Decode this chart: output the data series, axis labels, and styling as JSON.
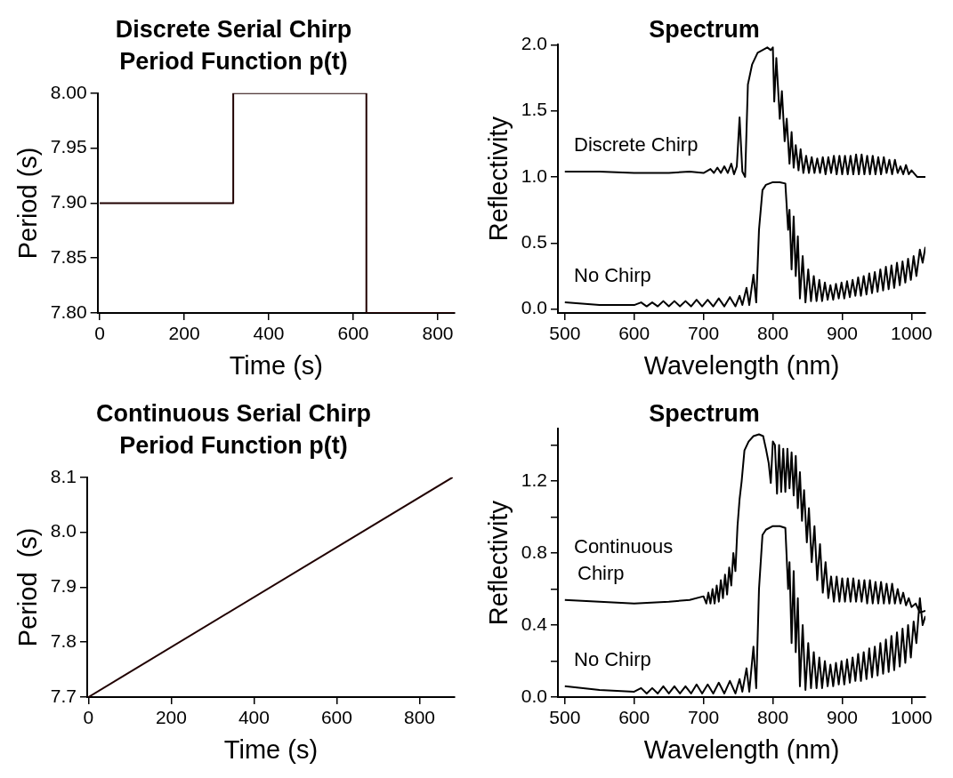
{
  "chart_data": [
    {
      "type": "step",
      "title": "Discrete Serial Chirp",
      "subtitle": "Period Function p(t)",
      "xlabel": "Time (s)",
      "ylabel": "Period (s)",
      "x": [
        0,
        316,
        631,
        840
      ],
      "values": [
        7.9,
        8.0,
        7.8,
        7.8
      ],
      "color": "#200000",
      "xlim": [
        -5,
        840
      ],
      "xticks": [
        0,
        200,
        400,
        600,
        800
      ],
      "ylim": [
        7.8,
        8.0
      ],
      "yticks": [
        {
          "value": 7.8,
          "label": "7.80"
        },
        {
          "value": 7.85,
          "label": "7.85"
        },
        {
          "value": 7.9,
          "label": "7.90"
        },
        {
          "value": 7.95,
          "label": "7.95"
        },
        {
          "value": 8.0,
          "label": "8.00"
        }
      ],
      "grid": false,
      "legend": false
    },
    {
      "type": "line",
      "title": "Spectrum",
      "xlabel": "Wavelength (nm)",
      "ylabel": "Reflectivity",
      "xlim": [
        490,
        1020
      ],
      "xticks": [
        500,
        600,
        700,
        800,
        900,
        1000
      ],
      "ylim": [
        -0.03,
        2.0
      ],
      "yticks": [
        {
          "value": 0,
          "label": "0.0"
        },
        {
          "value": 0.5,
          "label": "0.5"
        },
        {
          "value": 1,
          "label": "1.0"
        },
        {
          "value": 1.5,
          "label": "1.5"
        },
        {
          "value": 2,
          "label": "2.0"
        }
      ],
      "grid": false,
      "legend": false,
      "series": [
        {
          "name": "Discrete Chirp",
          "color": "#000000",
          "x": [
            500,
            550,
            600,
            650,
            680,
            700,
            710,
            715,
            720,
            725,
            730,
            735,
            740,
            744,
            748,
            752,
            756,
            760,
            764,
            770,
            778,
            785,
            792,
            797,
            800,
            802,
            805,
            810,
            813,
            817,
            820,
            824,
            827,
            830,
            833,
            837,
            840,
            844,
            848,
            852,
            856,
            860,
            864,
            868,
            872,
            876,
            880,
            884,
            888,
            892,
            896,
            900,
            904,
            908,
            912,
            916,
            920,
            924,
            928,
            932,
            936,
            940,
            944,
            948,
            952,
            956,
            960,
            964,
            968,
            972,
            976,
            980,
            984,
            988,
            992,
            996,
            1000,
            1008,
            1020
          ],
          "values": [
            1.04,
            1.04,
            1.03,
            1.03,
            1.04,
            1.03,
            1.06,
            1.03,
            1.07,
            1.03,
            1.08,
            1.03,
            1.1,
            1.02,
            1.08,
            1.45,
            1.04,
            1.0,
            1.7,
            1.85,
            1.94,
            1.96,
            1.98,
            1.96,
            1.98,
            1.57,
            1.9,
            1.44,
            1.65,
            1.27,
            1.44,
            1.1,
            1.34,
            1.07,
            1.24,
            1.05,
            1.21,
            1.03,
            1.16,
            1.03,
            1.15,
            1.03,
            1.14,
            1.03,
            1.15,
            1.02,
            1.15,
            1.03,
            1.16,
            1.02,
            1.16,
            1.02,
            1.16,
            1.02,
            1.16,
            1.02,
            1.17,
            1.02,
            1.17,
            1.02,
            1.16,
            1.02,
            1.16,
            1.02,
            1.15,
            1.02,
            1.15,
            1.03,
            1.13,
            1.02,
            1.13,
            1.03,
            1.08,
            1.02,
            1.09,
            1.02,
            1.05,
            1.0,
            1.0
          ]
        },
        {
          "name": "No Chirp",
          "color": "#000000",
          "x": [
            500,
            550,
            600,
            610,
            618,
            626,
            634,
            642,
            650,
            658,
            666,
            674,
            682,
            690,
            698,
            706,
            714,
            722,
            730,
            738,
            746,
            752,
            756,
            762,
            766,
            772,
            776,
            780,
            785,
            790,
            800,
            810,
            818,
            822,
            824,
            827,
            830,
            833,
            836,
            839,
            843,
            847,
            851,
            855,
            859,
            863,
            867,
            871,
            875,
            879,
            883,
            887,
            891,
            895,
            899,
            903,
            907,
            911,
            915,
            919,
            923,
            927,
            931,
            935,
            939,
            943,
            947,
            951,
            955,
            959,
            963,
            967,
            971,
            975,
            979,
            983,
            987,
            991,
            995,
            999,
            1003,
            1007,
            1012,
            1016,
            1020
          ],
          "values": [
            0.05,
            0.03,
            0.03,
            0.05,
            0.02,
            0.05,
            0.02,
            0.06,
            0.02,
            0.06,
            0.02,
            0.06,
            0.02,
            0.07,
            0.02,
            0.07,
            0.02,
            0.08,
            0.02,
            0.09,
            0.02,
            0.1,
            0.03,
            0.16,
            0.03,
            0.26,
            0.05,
            0.6,
            0.9,
            0.94,
            0.96,
            0.96,
            0.95,
            0.6,
            0.75,
            0.3,
            0.7,
            0.25,
            0.55,
            0.08,
            0.4,
            0.05,
            0.3,
            0.06,
            0.25,
            0.06,
            0.22,
            0.06,
            0.2,
            0.07,
            0.18,
            0.07,
            0.19,
            0.08,
            0.2,
            0.08,
            0.21,
            0.09,
            0.22,
            0.1,
            0.24,
            0.1,
            0.25,
            0.11,
            0.27,
            0.12,
            0.28,
            0.13,
            0.3,
            0.14,
            0.32,
            0.15,
            0.33,
            0.16,
            0.35,
            0.18,
            0.36,
            0.2,
            0.38,
            0.22,
            0.4,
            0.25,
            0.45,
            0.35,
            0.47
          ]
        }
      ]
    },
    {
      "type": "line",
      "title": "Continuous Serial Chirp",
      "subtitle": "Period Function p(t)",
      "xlabel": "Time (s)",
      "ylabel": "Period  (s)",
      "x": [
        0,
        880
      ],
      "values": [
        7.7,
        8.1
      ],
      "color": "#200000",
      "xlim": [
        -3,
        885
      ],
      "xticks": [
        0,
        200,
        400,
        600,
        800
      ],
      "ylim": [
        7.7,
        8.1
      ],
      "yticks": [
        7.7,
        7.8,
        7.9,
        {
          "value": 8.0,
          "label": "8.0"
        },
        8.1
      ],
      "grid": false,
      "legend": false
    },
    {
      "type": "line",
      "title": "Spectrum",
      "xlabel": "Wavelength (nm)",
      "ylabel": "Reflectivity",
      "xlim": [
        490,
        1020
      ],
      "xticks": [
        500,
        600,
        700,
        800,
        900,
        1000
      ],
      "ylim": [
        0,
        1.49
      ],
      "yticks": [
        {
          "value": 0,
          "label": "0.0"
        },
        {
          "value": 0.2,
          "label": null
        },
        {
          "value": 0.4,
          "label": "0.4"
        },
        {
          "value": 0.6,
          "label": null
        },
        {
          "value": 0.8,
          "label": "0.8"
        },
        {
          "value": 1.0,
          "label": null
        },
        {
          "value": 1.2,
          "label": "1.2"
        },
        {
          "value": 1.4,
          "label": null
        }
      ],
      "grid": false,
      "legend": false,
      "series": [
        {
          "name": "Continuous Chirp",
          "color": "#000000",
          "x": [
            500,
            550,
            600,
            650,
            680,
            700,
            704,
            707,
            710,
            713,
            716,
            719,
            722,
            725,
            728,
            731,
            734,
            737,
            740,
            743,
            746,
            749,
            752,
            755,
            759,
            765,
            772,
            780,
            786,
            790,
            794,
            797,
            800,
            803,
            806,
            809,
            812,
            815,
            818,
            821,
            824,
            827,
            830,
            833,
            836,
            839,
            842,
            845,
            849,
            852,
            856,
            860,
            864,
            868,
            872,
            876,
            880,
            884,
            888,
            892,
            896,
            900,
            904,
            908,
            912,
            916,
            920,
            924,
            928,
            932,
            936,
            940,
            944,
            948,
            952,
            956,
            960,
            964,
            968,
            972,
            976,
            980,
            984,
            988,
            992,
            996,
            1000,
            1006,
            1012,
            1020
          ],
          "values": [
            0.54,
            0.53,
            0.52,
            0.53,
            0.54,
            0.56,
            0.52,
            0.58,
            0.52,
            0.6,
            0.52,
            0.62,
            0.53,
            0.65,
            0.55,
            0.68,
            0.57,
            0.72,
            0.62,
            0.8,
            0.7,
            0.95,
            1.1,
            1.2,
            1.37,
            1.42,
            1.45,
            1.46,
            1.45,
            1.38,
            1.3,
            1.19,
            1.42,
            1.4,
            1.13,
            1.4,
            1.14,
            1.38,
            1.14,
            1.38,
            1.16,
            1.36,
            1.12,
            1.34,
            1.05,
            1.25,
            0.98,
            1.15,
            0.86,
            1.05,
            0.75,
            0.95,
            0.65,
            0.85,
            0.58,
            0.75,
            0.55,
            0.67,
            0.53,
            0.67,
            0.53,
            0.66,
            0.53,
            0.66,
            0.53,
            0.66,
            0.53,
            0.65,
            0.53,
            0.65,
            0.52,
            0.65,
            0.52,
            0.64,
            0.52,
            0.64,
            0.52,
            0.63,
            0.52,
            0.63,
            0.52,
            0.6,
            0.52,
            0.58,
            0.51,
            0.55,
            0.5,
            0.52,
            0.47,
            0.48
          ]
        },
        {
          "name": "No Chirp",
          "color": "#000000",
          "x": [
            500,
            550,
            600,
            610,
            618,
            626,
            634,
            642,
            650,
            658,
            666,
            674,
            682,
            690,
            698,
            706,
            714,
            722,
            730,
            738,
            746,
            752,
            756,
            762,
            766,
            772,
            776,
            780,
            785,
            790,
            800,
            810,
            818,
            822,
            824,
            827,
            830,
            833,
            836,
            839,
            843,
            847,
            851,
            855,
            859,
            863,
            867,
            871,
            875,
            879,
            883,
            887,
            891,
            895,
            899,
            903,
            907,
            911,
            915,
            919,
            923,
            927,
            931,
            935,
            939,
            943,
            947,
            951,
            955,
            959,
            963,
            967,
            971,
            975,
            979,
            983,
            987,
            991,
            995,
            999,
            1003,
            1007,
            1012,
            1016,
            1020
          ],
          "values": [
            0.06,
            0.04,
            0.03,
            0.05,
            0.02,
            0.05,
            0.02,
            0.06,
            0.02,
            0.06,
            0.02,
            0.06,
            0.02,
            0.07,
            0.02,
            0.07,
            0.02,
            0.08,
            0.02,
            0.09,
            0.02,
            0.1,
            0.03,
            0.16,
            0.03,
            0.28,
            0.05,
            0.6,
            0.9,
            0.93,
            0.95,
            0.95,
            0.94,
            0.6,
            0.75,
            0.3,
            0.7,
            0.25,
            0.55,
            0.06,
            0.4,
            0.04,
            0.3,
            0.05,
            0.25,
            0.05,
            0.22,
            0.05,
            0.2,
            0.06,
            0.18,
            0.06,
            0.19,
            0.07,
            0.2,
            0.07,
            0.21,
            0.08,
            0.22,
            0.09,
            0.24,
            0.09,
            0.25,
            0.1,
            0.27,
            0.11,
            0.28,
            0.12,
            0.3,
            0.13,
            0.32,
            0.14,
            0.34,
            0.15,
            0.36,
            0.17,
            0.38,
            0.19,
            0.4,
            0.22,
            0.42,
            0.3,
            0.55,
            0.4,
            0.45
          ]
        }
      ]
    }
  ]
}
